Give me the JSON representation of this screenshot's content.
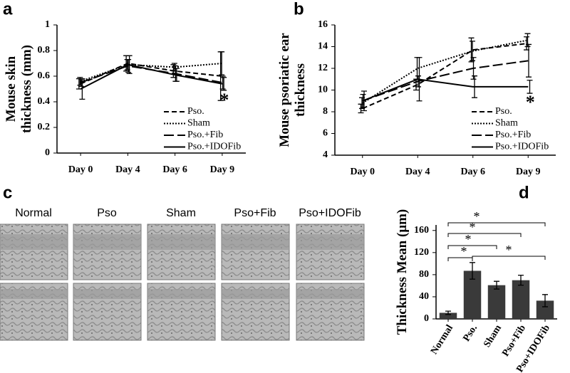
{
  "chart_data": [
    {
      "type": "line",
      "panel_label": "a",
      "y_label": [
        "Mouse skin",
        "thickness (mm)"
      ],
      "categories": [
        "Day 0",
        "Day 4",
        "Day 6",
        "Day 9"
      ],
      "ylim": [
        0,
        1
      ],
      "yticks": [
        0,
        0.2,
        0.4,
        0.6,
        0.8,
        1
      ],
      "annotation": "*",
      "series": [
        {
          "name": "Pso.",
          "color": "#000000",
          "dash": "dashed",
          "values": [
            0.54,
            0.7,
            0.64,
            0.6
          ],
          "errors": [
            0.04,
            0.06,
            0.05,
            0.19
          ]
        },
        {
          "name": "Sham",
          "color": "#000000",
          "dash": "dotted",
          "values": [
            0.56,
            0.69,
            0.67,
            0.7
          ],
          "errors": [
            0.03,
            0.04,
            0.03,
            0.09
          ]
        },
        {
          "name": "Pso.+Fib",
          "color": "#000000",
          "dash": "longdash",
          "values": [
            0.55,
            0.68,
            0.62,
            0.55
          ],
          "errors": [
            0.03,
            0.05,
            0.06,
            0.05
          ]
        },
        {
          "name": "Pso.+IDOFib",
          "color": "#000000",
          "dash": "solid",
          "values": [
            0.5,
            0.69,
            0.61,
            0.54
          ],
          "errors": [
            0.08,
            0.07,
            0.05,
            0.05
          ]
        }
      ]
    },
    {
      "type": "line",
      "panel_label": "b",
      "y_label": [
        "Mouse psoriatic ear",
        "thickness"
      ],
      "categories": [
        "Day 0",
        "Day 4",
        "Day 6",
        "Day 9"
      ],
      "ylim": [
        4,
        16
      ],
      "yticks": [
        4,
        6,
        8,
        10,
        12,
        14,
        16
      ],
      "annotation": "*",
      "series": [
        {
          "name": "Pso.",
          "color": "#000000",
          "dash": "dashed",
          "values": [
            8.3,
            10.5,
            13.7,
            14.3
          ],
          "errors": [
            0.4,
            0.5,
            1.1,
            0.6
          ]
        },
        {
          "name": "Sham",
          "color": "#000000",
          "dash": "dotted",
          "values": [
            8.8,
            12.0,
            13.6,
            14.6
          ],
          "errors": [
            0.5,
            1.0,
            0.9,
            0.6
          ]
        },
        {
          "name": "Pso.+Fib",
          "color": "#000000",
          "dash": "longdash",
          "values": [
            9.0,
            10.8,
            12.0,
            12.7
          ],
          "errors": [
            0.6,
            0.5,
            1.0,
            1.5
          ]
        },
        {
          "name": "Pso.+IDOFib",
          "color": "#000000",
          "dash": "solid",
          "values": [
            9.0,
            11.0,
            10.3,
            10.3
          ],
          "errors": [
            0.9,
            2.0,
            1.0,
            0.6
          ]
        }
      ]
    },
    {
      "type": "bar",
      "panel_label": "d",
      "y_label": [
        "Thickness Mean (μm)"
      ],
      "categories": [
        "Normal",
        "Pso.",
        "Sham",
        "Pso+Fib",
        "Pso+IDOFib"
      ],
      "values": [
        11,
        87,
        61,
        70,
        33
      ],
      "errors": [
        3,
        15,
        7,
        9,
        11
      ],
      "color": "#3a3a3a",
      "ylim": [
        0,
        170
      ],
      "yticks": [
        0,
        40,
        80,
        120,
        160
      ],
      "significance": [
        {
          "from": 0,
          "to": 1,
          "label": "*"
        },
        {
          "from": 0,
          "to": 2,
          "label": "*"
        },
        {
          "from": 0,
          "to": 3,
          "label": "*"
        },
        {
          "from": 0,
          "to": 4,
          "label": "*"
        },
        {
          "from": 1,
          "to": 4,
          "label": "*"
        }
      ]
    }
  ],
  "panel_c": {
    "panel_label": "c",
    "columns": [
      "Normal",
      "Pso",
      "Sham",
      "Pso+Fib",
      "Pso+IDOFib"
    ]
  }
}
